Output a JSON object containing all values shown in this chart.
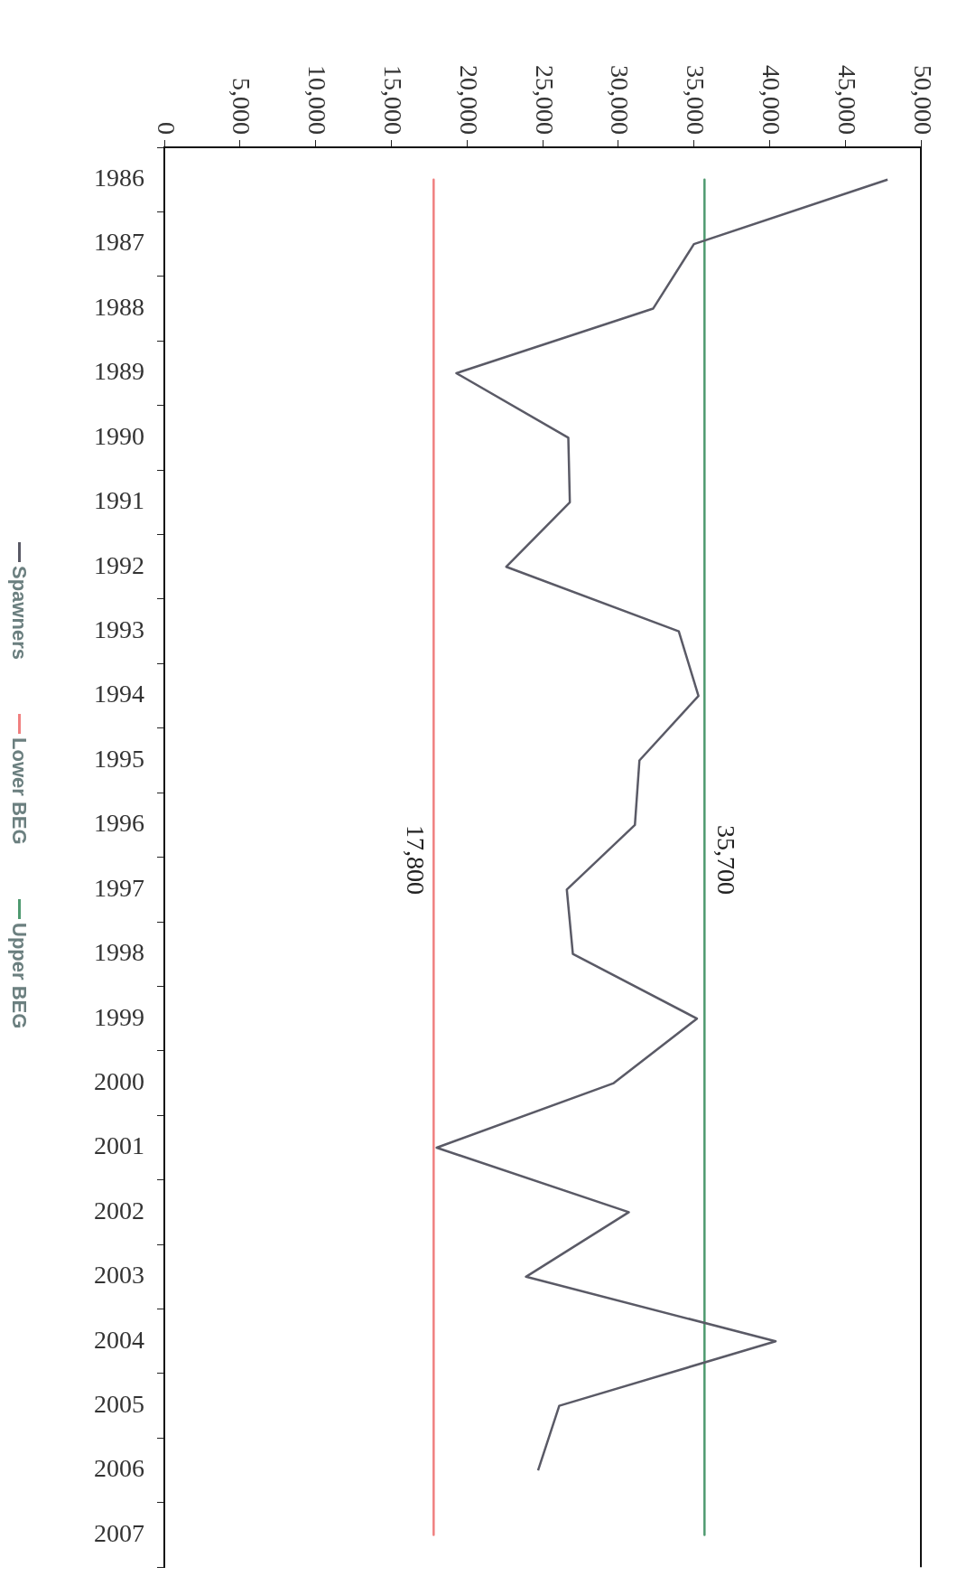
{
  "chart_data": {
    "type": "line",
    "orientation": "horizontal",
    "categories": [
      "1986",
      "1987",
      "1988",
      "1989",
      "1990",
      "1991",
      "1992",
      "1993",
      "1994",
      "1995",
      "1996",
      "1997",
      "1998",
      "1999",
      "2000",
      "2001",
      "2002",
      "2003",
      "2004",
      "2005",
      "2006",
      "2007"
    ],
    "series": [
      {
        "name": "Spawners",
        "color": "#5a5a66",
        "values": [
          47800,
          35000,
          32300,
          19300,
          26700,
          26800,
          22600,
          34000,
          35300,
          31400,
          31100,
          26600,
          27000,
          35200,
          29700,
          18000,
          30700,
          23900,
          40400,
          26100,
          24700,
          null
        ]
      },
      {
        "name": "Lower BEG",
        "color": "#f08080",
        "values": [
          17800,
          17800,
          17800,
          17800,
          17800,
          17800,
          17800,
          17800,
          17800,
          17800,
          17800,
          17800,
          17800,
          17800,
          17800,
          17800,
          17800,
          17800,
          17800,
          17800,
          17800,
          17800
        ]
      },
      {
        "name": "Upper BEG",
        "color": "#4f9a70",
        "values": [
          35700,
          35700,
          35700,
          35700,
          35700,
          35700,
          35700,
          35700,
          35700,
          35700,
          35700,
          35700,
          35700,
          35700,
          35700,
          35700,
          35700,
          35700,
          35700,
          35700,
          35700,
          35700
        ]
      }
    ],
    "xlim": [
      0,
      50000
    ],
    "xticks": [
      0,
      {
        "value": 5000,
        "label": "5,000"
      },
      {
        "value": 10000,
        "label": "10,000"
      },
      {
        "value": 15000,
        "label": "15,000"
      },
      {
        "value": 20000,
        "label": "20,000"
      },
      {
        "value": 25000,
        "label": "25,000"
      },
      {
        "value": 30000,
        "label": "30,000"
      },
      {
        "value": 35000,
        "label": "35,000"
      },
      {
        "value": 40000,
        "label": "40,000"
      },
      {
        "value": 45000,
        "label": "45,000"
      },
      {
        "value": 50000,
        "label": "50,000"
      }
    ],
    "annotations": [
      {
        "text": "17,800",
        "x": 17800,
        "y": "1996"
      },
      {
        "text": "35,700",
        "x": 35700,
        "y": "1996"
      }
    ],
    "grid": false,
    "legend": "left",
    "marker": "none",
    "line_style": "solid"
  }
}
